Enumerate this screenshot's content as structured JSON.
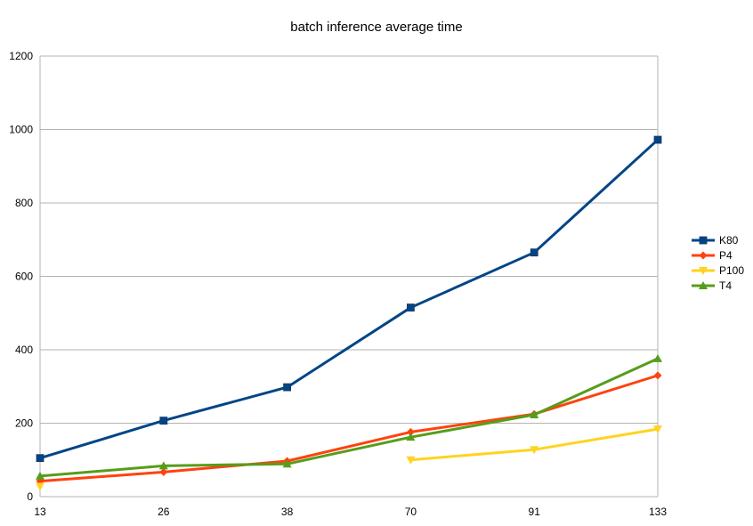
{
  "chart_data": {
    "type": "line",
    "title": "batch inference average time",
    "xlabel": "",
    "ylabel": "",
    "categories": [
      "13",
      "26",
      "38",
      "70",
      "91",
      "133"
    ],
    "ylim": [
      0,
      1200
    ],
    "yticks": [
      0,
      200,
      400,
      600,
      800,
      1000,
      1200
    ],
    "grid": "horizontal",
    "legend_position": "right",
    "series": [
      {
        "name": "K80",
        "color": "#004586",
        "marker": "square",
        "values": [
          105,
          207,
          298,
          515,
          665,
          972
        ]
      },
      {
        "name": "P4",
        "color": "#ff420e",
        "marker": "diamond",
        "values": [
          42,
          67,
          97,
          176,
          225,
          330
        ]
      },
      {
        "name": "P100",
        "color": "#ffd320",
        "marker": "triangle-down",
        "values": [
          28,
          null,
          null,
          100,
          128,
          184
        ]
      },
      {
        "name": "T4",
        "color": "#579d1c",
        "marker": "triangle-up",
        "values": [
          56,
          84,
          89,
          162,
          223,
          376
        ]
      }
    ]
  }
}
